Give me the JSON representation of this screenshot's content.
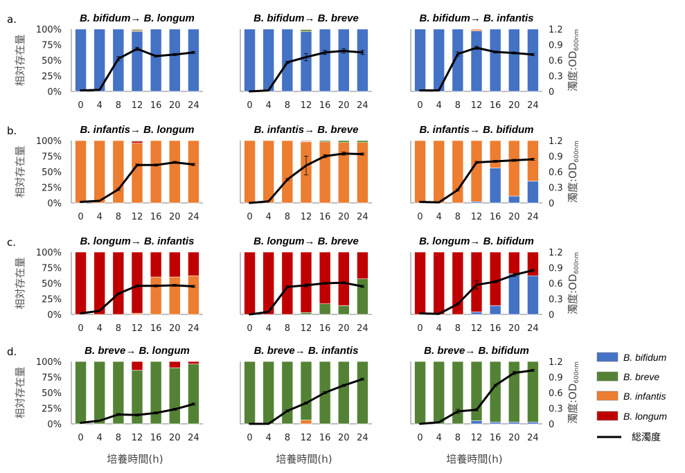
{
  "chart_data": {
    "type": "bar",
    "categories": [
      "0",
      "4",
      "8",
      "12",
      "16",
      "20",
      "24"
    ],
    "y_left_ticks": [
      "0%",
      "25%",
      "50%",
      "75%",
      "100%"
    ],
    "y_right_ticks": [
      "0",
      "0.3",
      "0.6",
      "0.9",
      "1.2"
    ],
    "ylabel_left": "相対存在量",
    "ylabel_right_main": "濁度:OD",
    "ylabel_right_sub": "600nm",
    "xlabel": "培養時間(h)",
    "colors": {
      "bifidum": "#4472c4",
      "breve": "#548235",
      "infantis": "#ed7d31",
      "longum": "#c00000",
      "line": "#000000"
    },
    "legend": [
      {
        "key": "bifidum",
        "label": "B. bifidum"
      },
      {
        "key": "breve",
        "label": "B. breve"
      },
      {
        "key": "infantis",
        "label": "B. infantis"
      },
      {
        "key": "longum",
        "label": "B. longum"
      },
      {
        "key": "line",
        "label": "総濁度"
      }
    ],
    "rows": [
      {
        "label": "a.",
        "panels": [
          {
            "title": "B. bifidum→ B. longum",
            "stack": [
              {
                "key": "bifidum",
                "values": [
                  100,
                  100,
                  100,
                  96,
                  100,
                  100,
                  100
                ]
              },
              {
                "key": "longum",
                "values": [
                  0,
                  0,
                  0,
                  1,
                  0,
                  0,
                  0
                ]
              },
              {
                "key": "breve",
                "values": [
                  0,
                  0,
                  0,
                  2,
                  0,
                  0,
                  0
                ]
              },
              {
                "key": "infantis",
                "values": [
                  0,
                  0,
                  0,
                  1,
                  0,
                  0,
                  0
                ]
              }
            ],
            "od": [
              0.02,
              0.03,
              0.63,
              0.82,
              0.68,
              0.71,
              0.75
            ],
            "err": [
              0,
              0,
              0.04,
              0.03,
              0.02,
              0.02,
              0.02
            ]
          },
          {
            "title": "B. bifidum→ B. breve",
            "stack": [
              {
                "key": "bifidum",
                "values": [
                  100,
                  100,
                  100,
                  96,
                  100,
                  100,
                  100
                ]
              },
              {
                "key": "breve",
                "values": [
                  0,
                  0,
                  0,
                  3,
                  0,
                  0,
                  0
                ]
              },
              {
                "key": "infantis",
                "values": [
                  0,
                  0,
                  0,
                  1,
                  0,
                  0,
                  0
                ]
              }
            ],
            "od": [
              0.0,
              0.02,
              0.56,
              0.66,
              0.75,
              0.78,
              0.75
            ],
            "err": [
              0,
              0,
              0.02,
              0.07,
              0.04,
              0.04,
              0.04
            ]
          },
          {
            "title": "B. bifidum→ B. infantis",
            "stack": [
              {
                "key": "bifidum",
                "values": [
                  100,
                  100,
                  100,
                  97,
                  100,
                  100,
                  100
                ]
              },
              {
                "key": "infantis",
                "values": [
                  0,
                  0,
                  0,
                  2,
                  0,
                  0,
                  0
                ]
              },
              {
                "key": "longum",
                "values": [
                  0,
                  0,
                  0,
                  1,
                  0,
                  0,
                  0
                ]
              }
            ],
            "od": [
              0.02,
              0.02,
              0.72,
              0.84,
              0.76,
              0.74,
              0.71
            ],
            "err": [
              0,
              0,
              0.04,
              0.03,
              0.02,
              0.02,
              0.02
            ]
          }
        ]
      },
      {
        "label": "b.",
        "panels": [
          {
            "title": "B. infantis→ B. longum",
            "stack": [
              {
                "key": "infantis",
                "values": [
                  100,
                  100,
                  100,
                  96,
                  100,
                  100,
                  100
                ]
              },
              {
                "key": "longum",
                "values": [
                  0,
                  0,
                  0,
                  3,
                  0,
                  0,
                  0
                ]
              },
              {
                "key": "breve",
                "values": [
                  0,
                  0,
                  0,
                  1,
                  0,
                  0,
                  0
                ]
              }
            ],
            "od": [
              0.02,
              0.04,
              0.26,
              0.73,
              0.73,
              0.78,
              0.74
            ],
            "err": [
              0,
              0,
              0.02,
              0.02,
              0.02,
              0.02,
              0.02
            ]
          },
          {
            "title": "B. infantis→ B. breve",
            "stack": [
              {
                "key": "infantis",
                "values": [
                  100,
                  100,
                  100,
                  98,
                  98,
                  97,
                  97
                ]
              },
              {
                "key": "breve",
                "values": [
                  0,
                  0,
                  0,
                  1,
                  2,
                  3,
                  3
                ]
              },
              {
                "key": "longum",
                "values": [
                  0,
                  0,
                  0,
                  1,
                  0,
                  0,
                  0
                ]
              }
            ],
            "od": [
              0.0,
              0.03,
              0.45,
              0.72,
              0.9,
              0.95,
              0.94
            ],
            "err": [
              0,
              0,
              0.02,
              0.18,
              0.03,
              0.03,
              0.02
            ]
          },
          {
            "title": "B. infantis→ B. bifidum",
            "stack": [
              {
                "key": "bifidum",
                "values": [
                  0,
                  0,
                  0,
                  2,
                  56,
                  11,
                  35
                ]
              },
              {
                "key": "infantis",
                "values": [
                  100,
                  100,
                  100,
                  98,
                  44,
                  89,
                  65
                ]
              }
            ],
            "od": [
              0.02,
              0.01,
              0.25,
              0.78,
              0.8,
              0.82,
              0.84
            ],
            "err": [
              0,
              0,
              0.02,
              0.02,
              0.02,
              0.02,
              0.02
            ]
          }
        ]
      },
      {
        "label": "c.",
        "panels": [
          {
            "title": "B. longum→ B. infantis",
            "stack": [
              {
                "key": "infantis",
                "values": [
                  0,
                  0,
                  0,
                  2,
                  60,
                  60,
                  62
                ]
              },
              {
                "key": "longum",
                "values": [
                  100,
                  100,
                  100,
                  98,
                  40,
                  40,
                  38
                ]
              }
            ],
            "od": [
              0.02,
              0.07,
              0.4,
              0.55,
              0.55,
              0.56,
              0.54
            ],
            "err": [
              0,
              0,
              0.02,
              0.02,
              0.02,
              0.02,
              0.02
            ]
          },
          {
            "title": "B. longum→ B. breve",
            "stack": [
              {
                "key": "breve",
                "values": [
                  0,
                  0,
                  0,
                  3,
                  17,
                  14,
                  57
                ]
              },
              {
                "key": "longum",
                "values": [
                  100,
                  100,
                  100,
                  97,
                  83,
                  86,
                  43
                ]
              }
            ],
            "od": [
              0.0,
              0.05,
              0.53,
              0.56,
              0.6,
              0.61,
              0.54
            ],
            "err": [
              0,
              0,
              0.02,
              0.03,
              0.02,
              0.02,
              0.02
            ]
          },
          {
            "title": "B. longum→ B. bifidum",
            "stack": [
              {
                "key": "bifidum",
                "values": [
                  0,
                  0,
                  0,
                  4,
                  14,
                  65,
                  62
                ]
              },
              {
                "key": "longum",
                "values": [
                  100,
                  100,
                  100,
                  96,
                  86,
                  35,
                  38
                ]
              }
            ],
            "od": [
              0.02,
              0.01,
              0.2,
              0.57,
              0.63,
              0.76,
              0.85
            ],
            "err": [
              0,
              0,
              0.02,
              0.08,
              0.02,
              0.03,
              0.02
            ]
          }
        ]
      },
      {
        "label": "d.",
        "panels": [
          {
            "title": "B. breve→ B. longum",
            "stack": [
              {
                "key": "breve",
                "values": [
                  100,
                  100,
                  100,
                  86,
                  100,
                  90,
                  96
                ]
              },
              {
                "key": "longum",
                "values": [
                  0,
                  0,
                  0,
                  14,
                  0,
                  10,
                  4
                ]
              }
            ],
            "od": [
              0.02,
              0.06,
              0.18,
              0.17,
              0.21,
              0.28,
              0.38
            ],
            "err": [
              0,
              0,
              0.02,
              0.02,
              0.02,
              0.02,
              0.02
            ]
          },
          {
            "title": "B. breve→ B. infantis",
            "stack": [
              {
                "key": "infantis",
                "values": [
                  0,
                  0,
                  0,
                  6,
                  0,
                  0,
                  0
                ]
              },
              {
                "key": "breve",
                "values": [
                  100,
                  100,
                  100,
                  94,
                  100,
                  100,
                  100
                ]
              }
            ],
            "od": [
              0.0,
              0.0,
              0.25,
              0.4,
              0.6,
              0.74,
              0.86
            ],
            "err": [
              0,
              0,
              0.02,
              0.02,
              0.02,
              0.02,
              0.02
            ]
          },
          {
            "title": "B. breve→ B. bifidum",
            "stack": [
              {
                "key": "bifidum",
                "values": [
                  0,
                  0,
                  0,
                  5,
                  3,
                  3,
                  3
                ]
              },
              {
                "key": "breve",
                "values": [
                  100,
                  100,
                  100,
                  95,
                  97,
                  97,
                  97
                ]
              }
            ],
            "od": [
              0.0,
              0.03,
              0.24,
              0.27,
              0.74,
              0.98,
              1.03
            ],
            "err": [
              0,
              0,
              0.04,
              0.02,
              0.02,
              0.03,
              0.02
            ]
          }
        ]
      }
    ]
  }
}
